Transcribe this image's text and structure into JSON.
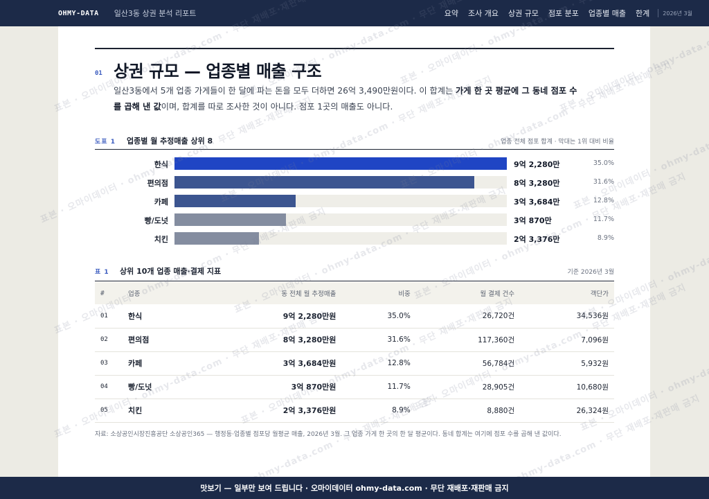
{
  "nav": {
    "brand": "OHMY-DATA",
    "report_name": "일산3동 상권 분석 리포트",
    "items": [
      "요약",
      "조사 개요",
      "상권 규모",
      "점포 분포",
      "업종별 매출",
      "한계"
    ],
    "date": "2026년 3월"
  },
  "section": {
    "number": "01",
    "title": "상권 규모 — 업종별 매출 구조",
    "lead_1": "일산3동에서 5개 업종 가게들이 한 달에 파는 돈을 모두 더하면 26억 3,490만원이다. 이 합계는 ",
    "lead_bold": "가게 한 곳 평균에 그 동네 점포 수를 곱해 낸 값",
    "lead_2": "이며, 합계를 따로 조사한 것이 아니다. 점포 1곳의 매출도 아니다."
  },
  "figure": {
    "label": "도표 1",
    "title": "업종별 월 추정매출 상위 8",
    "note": "업종 전체 점포 합계 · 막대는 1위 대비 비율"
  },
  "chart_data": {
    "type": "bar",
    "orientation": "horizontal",
    "categories": [
      "한식",
      "편의점",
      "카페",
      "빵/도넛",
      "치킨"
    ],
    "value_labels": [
      "9억 2,280만",
      "8억 3,280만",
      "3억 3,684만",
      "3억 870만",
      "2억 3,376만"
    ],
    "values": [
      92280,
      83280,
      33684,
      30870,
      23376
    ],
    "unit": "만원",
    "shares": [
      "35.0%",
      "31.6%",
      "12.8%",
      "11.7%",
      "8.9%"
    ],
    "title": "업종별 월 추정매출 상위 8",
    "colors": [
      "#1f45c4",
      "#3c5590",
      "#3c5590",
      "#848da0",
      "#848da0"
    ],
    "track_color": "#efeee8"
  },
  "table": {
    "label": "표 1",
    "title": "상위 10개 업종 매출·결제 지표",
    "note": "기준 2026년 3월",
    "headers": [
      "#",
      "업종",
      "동 전체 월 추정매출",
      "비중",
      "월 결제 건수",
      "객단가"
    ],
    "rows": [
      {
        "no": "01",
        "name": "한식",
        "sales": "9억 2,280만원",
        "share": "35.0%",
        "count": "26,720건",
        "avg": "34,536원"
      },
      {
        "no": "02",
        "name": "편의점",
        "sales": "8억 3,280만원",
        "share": "31.6%",
        "count": "117,360건",
        "avg": "7,096원"
      },
      {
        "no": "03",
        "name": "카페",
        "sales": "3억 3,684만원",
        "share": "12.8%",
        "count": "56,784건",
        "avg": "5,932원"
      },
      {
        "no": "04",
        "name": "빵/도넛",
        "sales": "3억 870만원",
        "share": "11.7%",
        "count": "28,905건",
        "avg": "10,680원"
      },
      {
        "no": "05",
        "name": "치킨",
        "sales": "2억 3,376만원",
        "share": "8.9%",
        "count": "8,880건",
        "avg": "26,324원"
      }
    ]
  },
  "source": "자료: 소상공인시장진흥공단 소상공인365 — 행정동·업종별 점포당 월평균 매출, 2026년 3월. 그 업종 가게 한 곳의 한 달 평균이다. 동네 합계는 여기에 점포 수를 곱해 낸 값이다.",
  "watermark": "표본 · 오마이데이터 · ohmy-data.com · 무단 재배포·재판매 금지",
  "footer": "맛보기 — 일부만 보여 드립니다 · 오마이데이터 ohmy-data.com · 무단 재배포·재판매 금지"
}
